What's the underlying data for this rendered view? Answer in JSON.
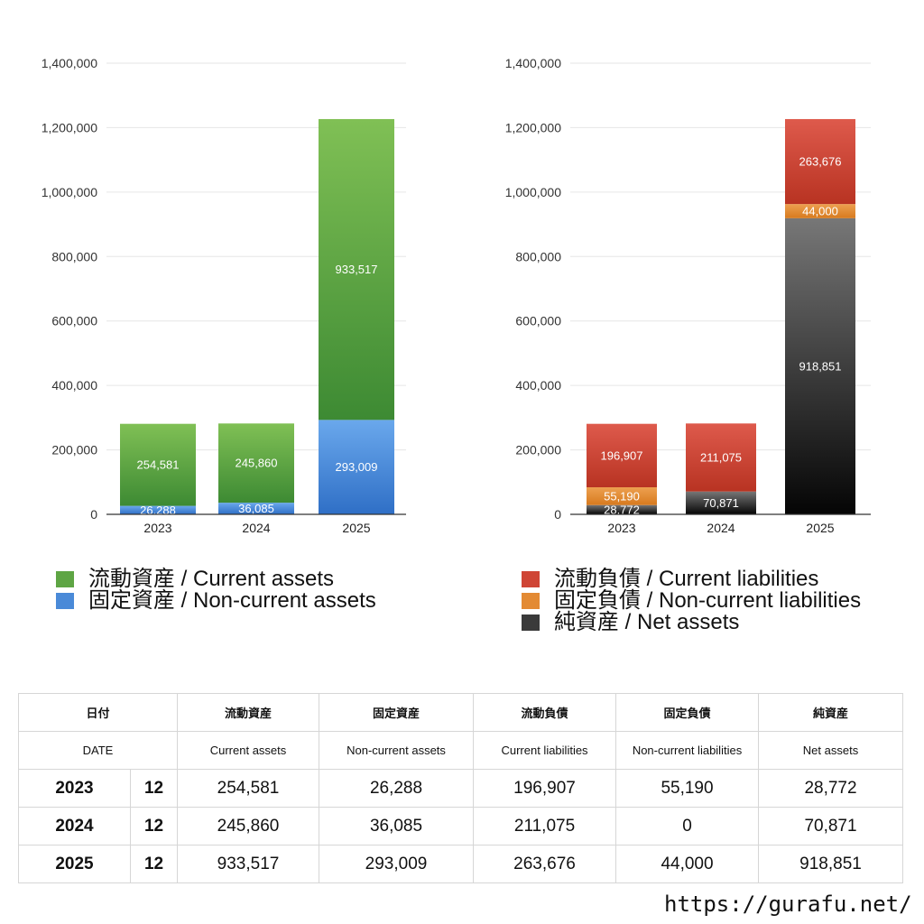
{
  "chart_data": [
    {
      "type": "bar",
      "stacked": true,
      "categories": [
        "2023",
        "2024",
        "2025"
      ],
      "ylim": [
        0,
        1400000
      ],
      "yticks": [
        0,
        200000,
        400000,
        600000,
        800000,
        1000000,
        1200000,
        1400000
      ],
      "ytick_labels": [
        "0",
        "200,000",
        "400,000",
        "600,000",
        "800,000",
        "1,000,000",
        "1,200,000",
        "1,400,000"
      ],
      "grid": true,
      "legend_position": "bottom",
      "series": [
        {
          "name": "固定資産 / Non-current assets",
          "values": [
            26288,
            36085,
            293009
          ],
          "labels": [
            "26,288",
            "36,085",
            "293,009"
          ],
          "color_top": "#6aa8ec",
          "color_bottom": "#2f6fc6"
        },
        {
          "name": "流動資産 / Current assets",
          "values": [
            254581,
            245860,
            933517
          ],
          "labels": [
            "254,581",
            "245,860",
            "933,517"
          ],
          "color_top": "#80c055",
          "color_bottom": "#3d8a33"
        }
      ]
    },
    {
      "type": "bar",
      "stacked": true,
      "categories": [
        "2023",
        "2024",
        "2025"
      ],
      "ylim": [
        0,
        1400000
      ],
      "yticks": [
        0,
        200000,
        400000,
        600000,
        800000,
        1000000,
        1200000,
        1400000
      ],
      "ytick_labels": [
        "0",
        "200,000",
        "400,000",
        "600,000",
        "800,000",
        "1,000,000",
        "1,200,000",
        "1,400,000"
      ],
      "grid": true,
      "legend_position": "bottom",
      "series": [
        {
          "name": "純資産 / Net assets",
          "values": [
            28772,
            70871,
            918851
          ],
          "labels": [
            "28,772",
            "70,871",
            "918,851"
          ],
          "color_top": "#777777",
          "color_bottom": "#050505"
        },
        {
          "name": "固定負債 / Non-current liabilities",
          "values": [
            55190,
            0,
            44000
          ],
          "labels": [
            "55,190",
            "",
            "44,000"
          ],
          "color_top": "#eda050",
          "color_bottom": "#d77a1e"
        },
        {
          "name": "流動負債 / Current liabilities",
          "values": [
            196907,
            211075,
            263676
          ],
          "labels": [
            "196,907",
            "211,075",
            "263,676"
          ],
          "color_top": "#de5a4c",
          "color_bottom": "#b83322"
        }
      ]
    }
  ],
  "legend_left": [
    {
      "label": "流動資産 / Current assets",
      "color": "#5ea544"
    },
    {
      "label": "固定資産 / Non-current assets",
      "color": "#4a8ad8"
    }
  ],
  "legend_right": [
    {
      "label": "流動負債 / Current liabilities",
      "color": "#cf4535"
    },
    {
      "label": "固定負債 / Non-current liabilities",
      "color": "#e38a33"
    },
    {
      "label": "純資産 / Net assets",
      "color": "#3a3a3a"
    }
  ],
  "table": {
    "header_jp": [
      "日付",
      "流動資産",
      "固定資産",
      "流動負債",
      "固定負債",
      "純資産"
    ],
    "header_en": [
      "DATE",
      "Current assets",
      "Non-current assets",
      "Current liabilities",
      "Non-current liabilities",
      "Net assets"
    ],
    "rows": [
      {
        "year": "2023",
        "month": "12",
        "values": [
          "254,581",
          "26,288",
          "196,907",
          "55,190",
          "28,772"
        ]
      },
      {
        "year": "2024",
        "month": "12",
        "values": [
          "245,860",
          "36,085",
          "211,075",
          "0",
          "70,871"
        ]
      },
      {
        "year": "2025",
        "month": "12",
        "values": [
          "933,517",
          "293,009",
          "263,676",
          "44,000",
          "918,851"
        ]
      }
    ]
  },
  "footer": {
    "url": "https://gurafu.net/"
  }
}
